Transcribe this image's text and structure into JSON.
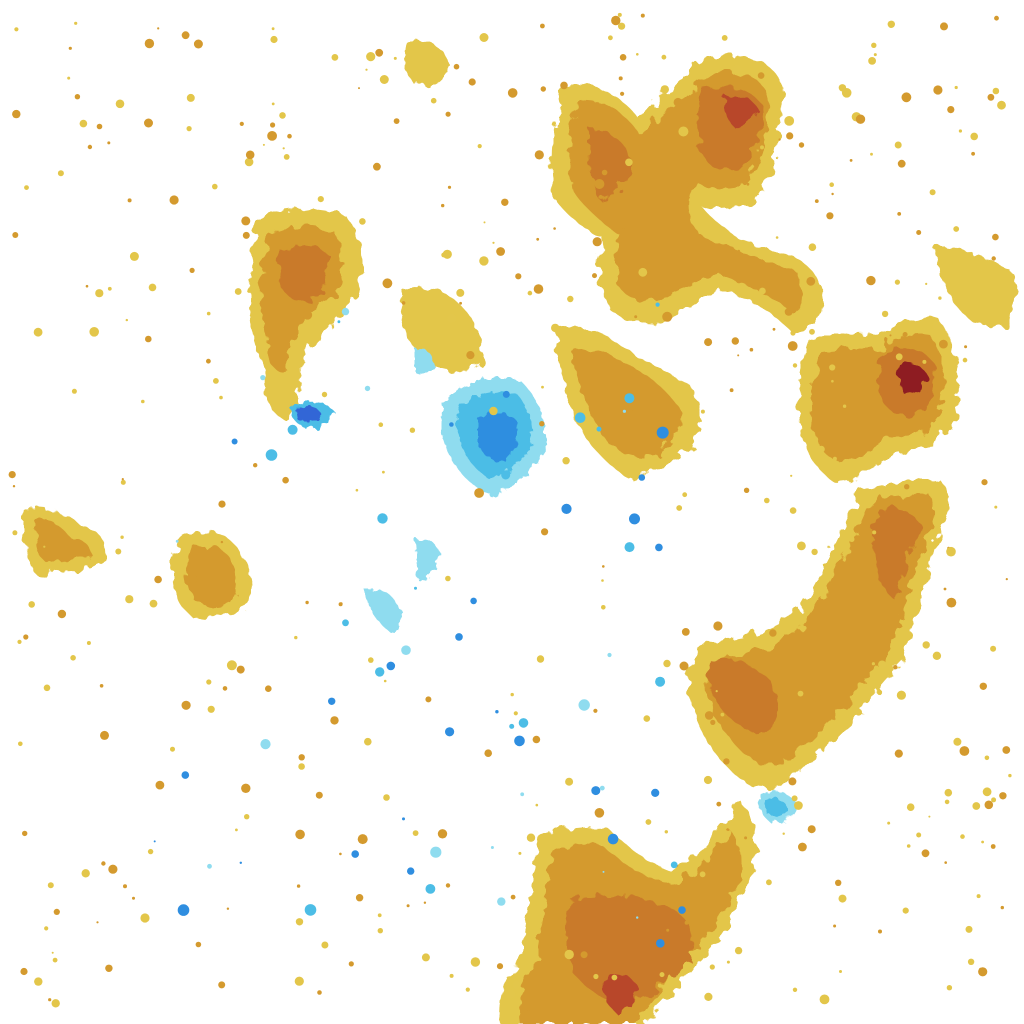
{
  "figure": {
    "background": "#ffffff",
    "colormap_warm": [
      "#e3c64a",
      "#d49a2e",
      "#c97a2a",
      "#b8462a",
      "#8e1f24"
    ],
    "colormap_cool": [
      "#8fdcef",
      "#4cbde6",
      "#2f8ee0",
      "#3266d6"
    ]
  }
}
